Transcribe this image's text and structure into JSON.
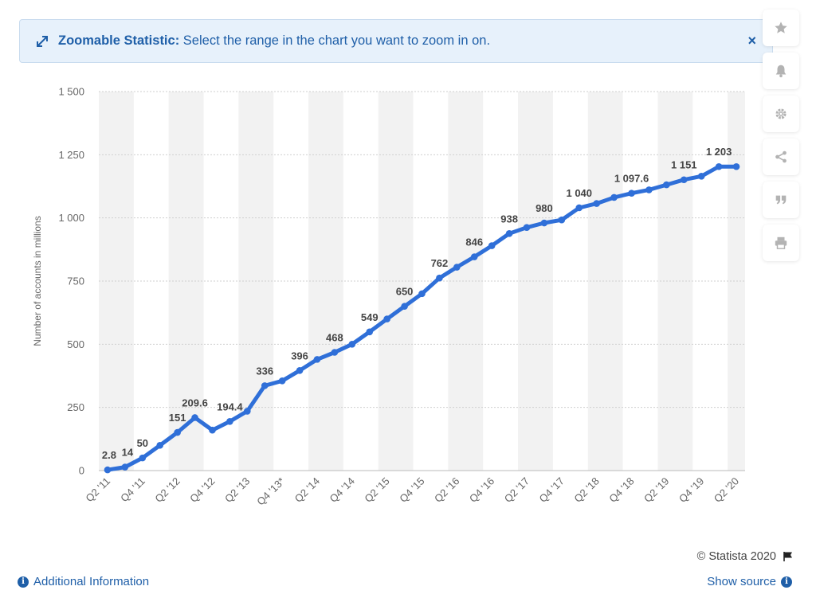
{
  "banner": {
    "title": "Zoomable Statistic:",
    "message": "Select the range in the chart you want to zoom in on.",
    "close": "×"
  },
  "tools": [
    {
      "name": "star-icon"
    },
    {
      "name": "bell-icon"
    },
    {
      "name": "gear-icon"
    },
    {
      "name": "share-icon"
    },
    {
      "name": "quote-icon"
    },
    {
      "name": "print-icon"
    }
  ],
  "footer": {
    "additional_info": "Additional Information",
    "copyright": "© Statista 2020",
    "show_source": "Show source",
    "info_glyph": "i"
  },
  "colors": {
    "line": "#2f6fd8",
    "band": "#f2f2f2",
    "grid": "#cfcfcf",
    "label": "#444444",
    "axis_text": "#666666"
  },
  "chart_data": {
    "type": "line",
    "title": "",
    "xlabel": "",
    "ylabel": "Number of accounts in millions",
    "ylim": [
      0,
      1500
    ],
    "yticks": [
      0,
      250,
      500,
      750,
      1000,
      1250,
      1500
    ],
    "ytick_labels": [
      "0",
      "250",
      "500",
      "750",
      "1 000",
      "1 250",
      "1 500"
    ],
    "grid": true,
    "categories": [
      "Q2 '11",
      "Q3 '11",
      "Q4 '11",
      "Q1 '12",
      "Q2 '12",
      "Q3 '12",
      "Q4 '12",
      "Q1 '13",
      "Q2 '13",
      "Q3 '13",
      "Q4 '13*",
      "Q1 '14",
      "Q2 '14",
      "Q3 '14",
      "Q4 '14",
      "Q1 '15",
      "Q2 '15",
      "Q3 '15",
      "Q4 '15",
      "Q1 '16",
      "Q2 '16",
      "Q3 '16",
      "Q4 '16",
      "Q1 '17",
      "Q2 '17",
      "Q3 '17",
      "Q4 '17",
      "Q1 '18",
      "Q2 '18",
      "Q3 '18",
      "Q4 '18",
      "Q1 '19",
      "Q2 '19",
      "Q3 '19",
      "Q4 '19",
      "Q1 '20",
      "Q2 '20"
    ],
    "xtick_labels": [
      "Q2 '11",
      "",
      "Q4 '11",
      "",
      "Q2 '12",
      "",
      "Q4 '12",
      "",
      "Q2 '13",
      "",
      "Q4 '13*",
      "",
      "Q2 '14",
      "",
      "Q4 '14",
      "",
      "Q2 '15",
      "",
      "Q4 '15",
      "",
      "Q2 '16",
      "",
      "Q4 '16",
      "",
      "Q2 '17",
      "",
      "Q4 '17",
      "",
      "Q2 '18",
      "",
      "Q4 '18",
      "",
      "Q2 '19",
      "",
      "Q4 '19",
      "",
      "Q2 '20"
    ],
    "series": [
      {
        "name": "Accounts",
        "values": [
          2.8,
          14,
          50,
          100,
          151,
          209.6,
          160,
          194.4,
          235,
          336,
          355,
          396,
          440,
          468,
          500,
          549,
          600,
          650,
          700,
          762,
          805,
          846,
          890,
          938,
          962,
          980,
          992,
          1040,
          1057,
          1081,
          1097.6,
          1111,
          1131,
          1151,
          1165,
          1203,
          1203
        ],
        "labels": [
          "2.8",
          "14",
          "50",
          "",
          "151",
          "209.6",
          "",
          "194.4",
          "",
          "336",
          "",
          "396",
          "",
          "468",
          "",
          "549",
          "",
          "650",
          "",
          "762",
          "",
          "846",
          "",
          "938",
          "",
          "980",
          "",
          "1 040",
          "",
          "",
          "1 097.6",
          "",
          "",
          "1 151",
          "",
          "1 203",
          ""
        ]
      }
    ]
  }
}
